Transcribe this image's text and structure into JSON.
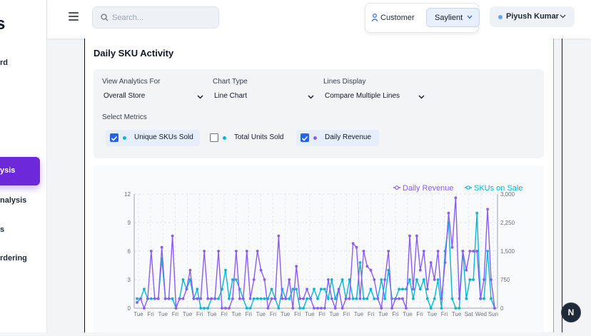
{
  "sidebar": {
    "logo": "s",
    "items": [
      {
        "label": "rd",
        "active": false
      },
      {
        "label": "ysis",
        "active": true
      },
      {
        "label": "nalysis",
        "active": false
      },
      {
        "label": "s",
        "active": false
      },
      {
        "label": "rdering",
        "active": false
      }
    ]
  },
  "header": {
    "search_placeholder": "Search...",
    "customer_label": "Customer",
    "brand": "Saylient",
    "user_name": "Piyush Kumar"
  },
  "card": {
    "title": "Daily SKU Activity",
    "filters": {
      "analytics_label": "View Analytics For",
      "analytics_value": "Overall Store",
      "chart_type_label": "Chart Type",
      "chart_type_value": "Line Chart",
      "lines_label": "Lines Display",
      "lines_value": "Compare Multiple Lines"
    },
    "metrics_label": "Select Metrics",
    "metrics": [
      {
        "label": "Unique SKUs Sold",
        "checked": true
      },
      {
        "label": "Total Units Sold",
        "checked": false
      },
      {
        "label": "Daily Revenue",
        "checked": true
      }
    ]
  },
  "fab_label": "N",
  "colors": {
    "revenue": "#8b5cf6",
    "skus": "#06b6d4",
    "accent": "#6d28d9",
    "checkbox": "#2563eb"
  },
  "chart_data": {
    "type": "line",
    "legend": [
      "Daily Revenue",
      "SKUs on Sale"
    ],
    "legend_placement": "top-right",
    "x_ticks": [
      "Tue",
      "Fri",
      "Tue",
      "Fri",
      "Tue",
      "Fri",
      "Tue",
      "Fri",
      "Tue",
      "Fri",
      "Tue",
      "Fri",
      "Tue",
      "Fri",
      "Tue",
      "Fri",
      "Tue",
      "Fri",
      "Tue",
      "Fri",
      "Tue",
      "Fri",
      "Tue",
      "Fri",
      "Tue",
      "Fri",
      "Tue",
      "Sat",
      "Wed",
      "Sun"
    ],
    "left_axis": {
      "ticks": [
        "0",
        "3",
        "6",
        "9",
        "12"
      ],
      "range": [
        0,
        12
      ]
    },
    "right_axis": {
      "ticks": [
        "0",
        "750",
        "1,500",
        "2,250",
        "3,000"
      ],
      "range": [
        0,
        3000
      ]
    },
    "series": [
      {
        "name": "Daily Revenue",
        "axis": "right",
        "values": [
          150,
          250,
          0,
          250,
          1500,
          250,
          250,
          1600,
          250,
          250,
          1900,
          0,
          250,
          250,
          500,
          1000,
          250,
          250,
          250,
          1500,
          250,
          250,
          250,
          1500,
          0,
          0,
          0,
          250,
          1500,
          250,
          250,
          1500,
          250,
          750,
          1500,
          1000,
          750,
          0,
          250,
          250,
          1900,
          250,
          250,
          750,
          0,
          1100,
          250,
          250,
          500,
          250,
          0,
          0,
          0,
          0,
          750,
          250,
          0,
          500,
          0,
          250,
          250,
          1700,
          1600,
          250,
          1500,
          1100,
          1000,
          750,
          250,
          0,
          750,
          1500,
          0,
          250,
          250,
          250,
          0,
          1900,
          500,
          1900,
          1000,
          1500,
          500,
          1200,
          750,
          1500,
          250,
          1200,
          2500,
          1600,
          2900,
          250,
          1500,
          1000,
          1500,
          1500,
          1500,
          250,
          750,
          2600,
          750,
          0
        ]
      },
      {
        "name": "SKUs on Sale",
        "axis": "right",
        "values": [
          250,
          250,
          500,
          250,
          250,
          250,
          250,
          1300,
          250,
          250,
          250,
          0,
          250,
          750,
          500,
          750,
          250,
          500,
          0,
          0,
          0,
          250,
          250,
          250,
          500,
          1000,
          250,
          750,
          750,
          500,
          250,
          0,
          0,
          250,
          250,
          250,
          250,
          250,
          500,
          250,
          0,
          500,
          250,
          250,
          500,
          500,
          0,
          0,
          250,
          250,
          500,
          250,
          500,
          500,
          250,
          750,
          250,
          500,
          750,
          250,
          750,
          250,
          250,
          1200,
          250,
          250,
          500,
          250,
          250,
          750,
          250,
          1000,
          250,
          250,
          500,
          500,
          500,
          750,
          250,
          750,
          500,
          750,
          250,
          0,
          250,
          750,
          0,
          1500,
          2250,
          250,
          0,
          0,
          1500,
          250,
          750,
          750,
          2500,
          250,
          250,
          1500,
          250,
          0
        ]
      }
    ]
  }
}
